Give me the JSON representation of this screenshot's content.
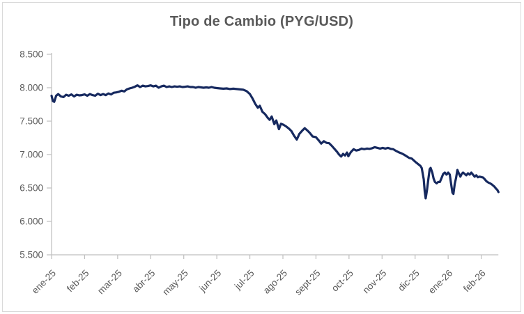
{
  "chart_data": {
    "type": "line",
    "title": "Tipo de Cambio (PYG/USD)",
    "xlabel": "",
    "ylabel": "",
    "grid": "off",
    "legend_position": "none",
    "colors": {
      "line": "#16295f",
      "axis": "#bfbfbf",
      "tick_label": "#595959",
      "title": "#595959",
      "border": "#d9d9d9",
      "background": "#ffffff"
    },
    "y_axis": {
      "min": 5500,
      "max": 8500,
      "tick_step": 500,
      "ticks": [
        {
          "label": "8.500",
          "value": 8500
        },
        {
          "label": "8.000",
          "value": 8000
        },
        {
          "label": "7.500",
          "value": 7500
        },
        {
          "label": "7.000",
          "value": 7000
        },
        {
          "label": "6.500",
          "value": 6500
        },
        {
          "label": "6.000",
          "value": 6000
        },
        {
          "label": "5.500",
          "value": 5500
        }
      ]
    },
    "x_axis": {
      "unit": "month",
      "labels": [
        "ene-25",
        "feb-25",
        "mar-25",
        "abr-25",
        "may-25",
        "jun-25",
        "jul-25",
        "ago-25",
        "sept-25",
        "oct-25",
        "nov-25",
        "dic-25",
        "ene-26",
        "feb-26"
      ],
      "label_anchor_months": [
        0,
        1,
        2,
        3,
        4,
        5,
        6,
        7,
        8,
        9,
        10,
        11,
        12,
        13
      ],
      "tick_months": [
        0,
        1,
        2,
        3,
        4,
        5,
        6,
        7,
        8,
        9,
        10,
        11,
        12,
        13
      ],
      "axis_start_month": 0,
      "axis_end_month": 13.52
    },
    "series": [
      {
        "name": "Tipo de Cambio PYG/USD",
        "color": "#16295f",
        "points": [
          [
            0.0,
            7880
          ],
          [
            0.04,
            7800
          ],
          [
            0.08,
            7790
          ],
          [
            0.14,
            7880
          ],
          [
            0.2,
            7905
          ],
          [
            0.28,
            7870
          ],
          [
            0.36,
            7860
          ],
          [
            0.44,
            7895
          ],
          [
            0.52,
            7880
          ],
          [
            0.6,
            7900
          ],
          [
            0.68,
            7870
          ],
          [
            0.76,
            7895
          ],
          [
            0.84,
            7885
          ],
          [
            0.92,
            7890
          ],
          [
            1.0,
            7900
          ],
          [
            1.08,
            7880
          ],
          [
            1.16,
            7905
          ],
          [
            1.24,
            7890
          ],
          [
            1.32,
            7880
          ],
          [
            1.4,
            7910
          ],
          [
            1.48,
            7890
          ],
          [
            1.56,
            7905
          ],
          [
            1.64,
            7890
          ],
          [
            1.72,
            7915
          ],
          [
            1.8,
            7900
          ],
          [
            1.88,
            7925
          ],
          [
            1.96,
            7930
          ],
          [
            2.04,
            7940
          ],
          [
            2.12,
            7955
          ],
          [
            2.2,
            7945
          ],
          [
            2.28,
            7975
          ],
          [
            2.36,
            7990
          ],
          [
            2.44,
            8000
          ],
          [
            2.52,
            8015
          ],
          [
            2.6,
            8035
          ],
          [
            2.68,
            8010
          ],
          [
            2.76,
            8030
          ],
          [
            2.84,
            8020
          ],
          [
            2.92,
            8025
          ],
          [
            3.0,
            8035
          ],
          [
            3.08,
            8020
          ],
          [
            3.16,
            8030
          ],
          [
            3.24,
            8000
          ],
          [
            3.32,
            8020
          ],
          [
            3.4,
            8030
          ],
          [
            3.48,
            8010
          ],
          [
            3.56,
            8020
          ],
          [
            3.64,
            8010
          ],
          [
            3.72,
            8020
          ],
          [
            3.8,
            8015
          ],
          [
            3.88,
            8020
          ],
          [
            3.96,
            8010
          ],
          [
            4.04,
            8015
          ],
          [
            4.12,
            8020
          ],
          [
            4.2,
            8010
          ],
          [
            4.28,
            8010
          ],
          [
            4.36,
            8000
          ],
          [
            4.44,
            8010
          ],
          [
            4.52,
            8005
          ],
          [
            4.6,
            8000
          ],
          [
            4.68,
            8005
          ],
          [
            4.76,
            8000
          ],
          [
            4.84,
            8010
          ],
          [
            4.92,
            8000
          ],
          [
            5.0,
            7995
          ],
          [
            5.1,
            7990
          ],
          [
            5.2,
            7985
          ],
          [
            5.3,
            7990
          ],
          [
            5.4,
            7980
          ],
          [
            5.5,
            7985
          ],
          [
            5.6,
            7980
          ],
          [
            5.7,
            7975
          ],
          [
            5.8,
            7970
          ],
          [
            5.9,
            7950
          ],
          [
            6.0,
            7905
          ],
          [
            6.08,
            7840
          ],
          [
            6.16,
            7760
          ],
          [
            6.24,
            7700
          ],
          [
            6.3,
            7730
          ],
          [
            6.38,
            7640
          ],
          [
            6.46,
            7605
          ],
          [
            6.54,
            7550
          ],
          [
            6.6,
            7520
          ],
          [
            6.66,
            7570
          ],
          [
            6.74,
            7455
          ],
          [
            6.8,
            7510
          ],
          [
            6.88,
            7380
          ],
          [
            6.94,
            7460
          ],
          [
            7.02,
            7445
          ],
          [
            7.1,
            7420
          ],
          [
            7.18,
            7390
          ],
          [
            7.26,
            7350
          ],
          [
            7.34,
            7280
          ],
          [
            7.42,
            7225
          ],
          [
            7.5,
            7310
          ],
          [
            7.58,
            7355
          ],
          [
            7.66,
            7395
          ],
          [
            7.74,
            7360
          ],
          [
            7.82,
            7320
          ],
          [
            7.9,
            7270
          ],
          [
            8.0,
            7260
          ],
          [
            8.08,
            7215
          ],
          [
            8.16,
            7165
          ],
          [
            8.24,
            7200
          ],
          [
            8.32,
            7175
          ],
          [
            8.4,
            7170
          ],
          [
            8.48,
            7130
          ],
          [
            8.56,
            7085
          ],
          [
            8.64,
            7040
          ],
          [
            8.7,
            7000
          ],
          [
            8.76,
            6970
          ],
          [
            8.82,
            7010
          ],
          [
            8.88,
            6985
          ],
          [
            8.94,
            7030
          ],
          [
            8.98,
            6975
          ],
          [
            9.06,
            7040
          ],
          [
            9.14,
            7080
          ],
          [
            9.22,
            7060
          ],
          [
            9.3,
            7070
          ],
          [
            9.38,
            7090
          ],
          [
            9.46,
            7080
          ],
          [
            9.54,
            7090
          ],
          [
            9.62,
            7085
          ],
          [
            9.7,
            7095
          ],
          [
            9.78,
            7110
          ],
          [
            9.86,
            7100
          ],
          [
            9.94,
            7090
          ],
          [
            10.02,
            7100
          ],
          [
            10.1,
            7090
          ],
          [
            10.18,
            7100
          ],
          [
            10.26,
            7085
          ],
          [
            10.34,
            7080
          ],
          [
            10.42,
            7055
          ],
          [
            10.5,
            7035
          ],
          [
            10.58,
            7020
          ],
          [
            10.66,
            7000
          ],
          [
            10.74,
            6975
          ],
          [
            10.82,
            6950
          ],
          [
            10.9,
            6940
          ],
          [
            11.01,
            6890
          ],
          [
            11.06,
            6870
          ],
          [
            11.11,
            6850
          ],
          [
            11.16,
            6830
          ],
          [
            11.2,
            6800
          ],
          [
            11.26,
            6630
          ],
          [
            11.29,
            6450
          ],
          [
            11.32,
            6345
          ],
          [
            11.36,
            6470
          ],
          [
            11.4,
            6630
          ],
          [
            11.44,
            6780
          ],
          [
            11.47,
            6800
          ],
          [
            11.52,
            6730
          ],
          [
            11.56,
            6640
          ],
          [
            11.6,
            6590
          ],
          [
            11.65,
            6570
          ],
          [
            11.7,
            6590
          ],
          [
            11.75,
            6590
          ],
          [
            11.8,
            6650
          ],
          [
            11.85,
            6710
          ],
          [
            11.9,
            6730
          ],
          [
            11.95,
            6700
          ],
          [
            12.0,
            6730
          ],
          [
            12.05,
            6700
          ],
          [
            12.09,
            6560
          ],
          [
            12.13,
            6430
          ],
          [
            12.16,
            6410
          ],
          [
            12.2,
            6560
          ],
          [
            12.24,
            6650
          ],
          [
            12.28,
            6770
          ],
          [
            12.33,
            6710
          ],
          [
            12.37,
            6670
          ],
          [
            12.41,
            6710
          ],
          [
            12.45,
            6730
          ],
          [
            12.5,
            6710
          ],
          [
            12.55,
            6690
          ],
          [
            12.6,
            6720
          ],
          [
            12.65,
            6700
          ],
          [
            12.7,
            6730
          ],
          [
            12.75,
            6700
          ],
          [
            12.8,
            6670
          ],
          [
            12.85,
            6690
          ],
          [
            12.9,
            6660
          ],
          [
            12.95,
            6670
          ],
          [
            13.02,
            6660
          ],
          [
            13.06,
            6655
          ],
          [
            13.09,
            6640
          ],
          [
            13.16,
            6600
          ],
          [
            13.22,
            6580
          ],
          [
            13.27,
            6570
          ],
          [
            13.33,
            6550
          ],
          [
            13.4,
            6520
          ],
          [
            13.45,
            6490
          ],
          [
            13.49,
            6470
          ],
          [
            13.52,
            6440
          ]
        ]
      }
    ]
  }
}
